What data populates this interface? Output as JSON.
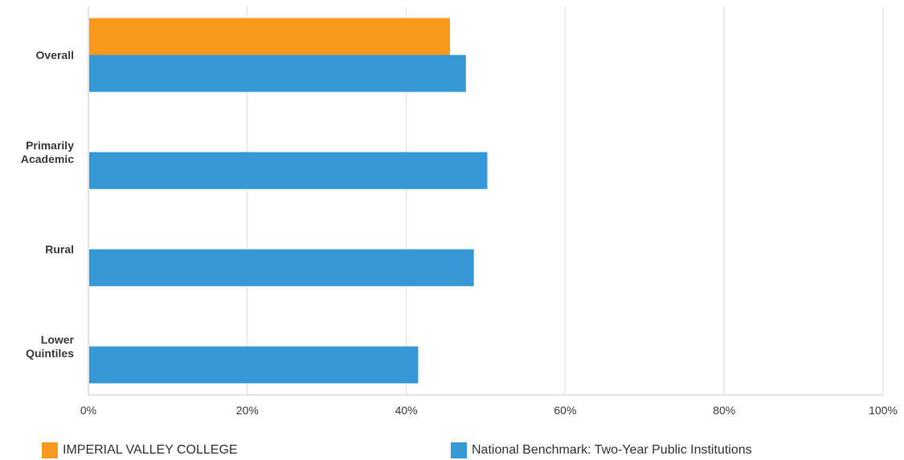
{
  "chart_data": {
    "type": "bar",
    "orientation": "horizontal",
    "categories": [
      [
        "Overall"
      ],
      [
        "Primarily",
        "Academic"
      ],
      [
        "Rural"
      ],
      [
        "Lower",
        "Quintiles"
      ]
    ],
    "series": [
      {
        "name": "IMPERIAL VALLEY COLLEGE",
        "color": "#f7991d",
        "values": [
          45.5,
          null,
          null,
          null
        ]
      },
      {
        "name": "National Benchmark: Two-Year Public Institutions",
        "color": "#3698d6",
        "values": [
          47.5,
          50.2,
          48.5,
          41.5
        ]
      }
    ],
    "xlim": [
      0,
      100
    ],
    "xticks": [
      "0%",
      "20%",
      "40%",
      "60%",
      "80%",
      "100%"
    ],
    "grid": true,
    "legend_position": "bottom",
    "title": "",
    "xlabel": "",
    "ylabel": ""
  }
}
